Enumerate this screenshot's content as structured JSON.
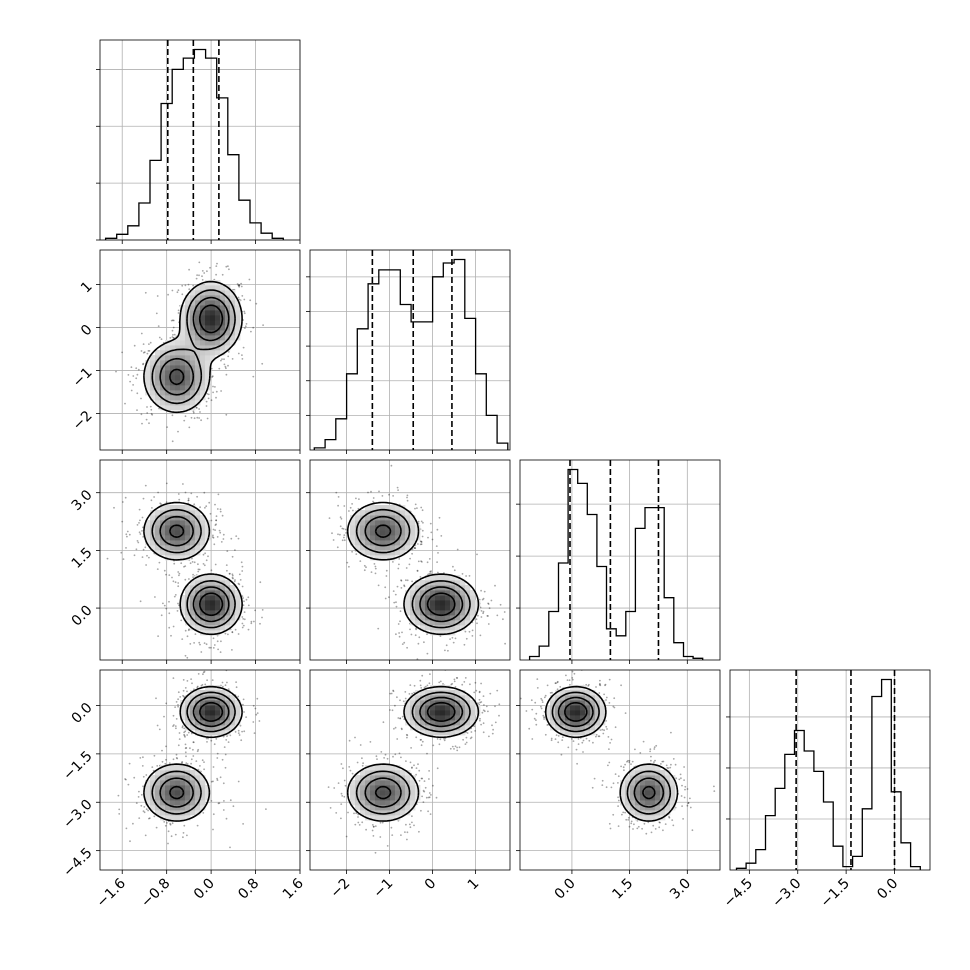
{
  "chart_data": {
    "type": "corner",
    "grid": true,
    "parameters": [
      {
        "ticks": [
          -1.6,
          -0.8,
          0.0,
          0.8,
          1.6
        ],
        "tick_labels": [
          "−1.6",
          "−0.8",
          "0.0",
          "0.8",
          "1.6"
        ],
        "range": [
          -2.0,
          1.6
        ],
        "quantiles": [
          -0.78,
          -0.32,
          0.14
        ],
        "hist_bins": [
          -1.9,
          -1.7,
          -1.5,
          -1.3,
          -1.1,
          -0.9,
          -0.7,
          -0.5,
          -0.3,
          -0.1,
          0.1,
          0.3,
          0.5,
          0.7,
          0.9,
          1.1,
          1.3
        ],
        "hist_counts": [
          0.3,
          1.0,
          2.5,
          6.5,
          14.0,
          24.0,
          30.0,
          32.0,
          33.5,
          32.0,
          25.0,
          15.0,
          7.0,
          3.0,
          1.2,
          0.3
        ],
        "hist_ticks": [
          0,
          10,
          20,
          30
        ],
        "hist_max": 33.5
      },
      {
        "ticks": [
          -2,
          -1,
          0,
          1
        ],
        "tick_labels": [
          "−2",
          "−1",
          "0",
          "1"
        ],
        "range": [
          -2.85,
          1.8
        ],
        "quantiles": [
          -1.4,
          -0.45,
          0.45
        ],
        "hist_bins": [
          -2.75,
          -2.5,
          -2.25,
          -2.0,
          -1.75,
          -1.5,
          -1.25,
          -1.0,
          -0.75,
          -0.5,
          -0.25,
          0.0,
          0.25,
          0.5,
          0.75,
          1.0,
          1.25,
          1.5,
          1.75
        ],
        "hist_counts": [
          0.3,
          1.5,
          4.5,
          11.0,
          17.5,
          24.0,
          26.0,
          26.0,
          21.0,
          18.5,
          18.5,
          25.0,
          27.0,
          27.5,
          19.0,
          11.0,
          5.0,
          1.0
        ],
        "hist_ticks": [
          5,
          10,
          15,
          20,
          25
        ],
        "hist_max": 27.5
      },
      {
        "ticks": [
          0.0,
          1.5,
          3.0
        ],
        "tick_labels": [
          "0.0",
          "1.5",
          "3.0"
        ],
        "range": [
          -1.35,
          3.85
        ],
        "quantiles": [
          -0.05,
          1.0,
          2.25
        ],
        "hist_bins": [
          -1.1,
          -0.85,
          -0.6,
          -0.35,
          -0.1,
          0.15,
          0.4,
          0.65,
          0.9,
          1.15,
          1.4,
          1.65,
          1.9,
          2.15,
          2.4,
          2.65,
          2.9,
          3.15,
          3.4
        ],
        "hist_counts": [
          1,
          4,
          14,
          28,
          55,
          51,
          42,
          27,
          9,
          7,
          14,
          38,
          44,
          44,
          18,
          5,
          1,
          0.5
        ],
        "hist_ticks": [
          15,
          30,
          45
        ],
        "hist_max": 55
      },
      {
        "ticks": [
          -4.5,
          -3.0,
          -1.5,
          0.0
        ],
        "tick_labels": [
          "−4.5",
          "−3.0",
          "−1.5",
          "0.0"
        ],
        "range": [
          -5.1,
          1.1
        ],
        "quantiles": [
          -3.05,
          -1.35,
          0.0
        ],
        "hist_bins": [
          -4.9,
          -4.6,
          -4.3,
          -4.0,
          -3.7,
          -3.4,
          -3.1,
          -2.8,
          -2.5,
          -2.2,
          -1.9,
          -1.6,
          -1.3,
          -1.0,
          -0.7,
          -0.4,
          -0.1,
          0.2,
          0.5,
          0.8
        ],
        "hist_counts": [
          0.5,
          2,
          6,
          16,
          24,
          34,
          41,
          35,
          29,
          20,
          7,
          1,
          4,
          18,
          51,
          56,
          23,
          8,
          1
        ],
        "hist_ticks": [
          15,
          30,
          45
        ],
        "hist_max": 56
      }
    ],
    "modes": [
      {
        "center": [
          0.0,
          0.2,
          0.1,
          -0.2
        ],
        "spread": [
          0.27,
          0.42,
          0.38,
          0.38
        ],
        "weight": 0.55
      },
      {
        "center": [
          -0.62,
          -1.15,
          2.0,
          -2.7
        ],
        "spread": [
          0.3,
          0.42,
          0.38,
          0.45
        ],
        "weight": 0.45
      }
    ],
    "contour_levels": [
      0.12,
      0.28,
      0.5,
      0.75
    ],
    "xlabel": "",
    "ylabel": ""
  }
}
